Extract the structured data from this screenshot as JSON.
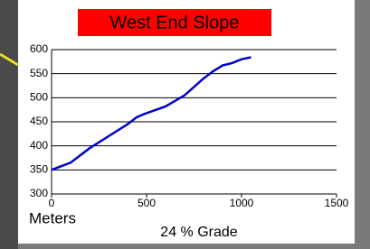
{
  "chart_data": {
    "type": "line",
    "title": "West End Slope",
    "title_background": "#ff0000",
    "x": [
      0,
      100,
      200,
      300,
      400,
      450,
      500,
      600,
      700,
      800,
      850,
      900,
      950,
      1000,
      1050
    ],
    "values": [
      350,
      365,
      395,
      420,
      445,
      460,
      468,
      482,
      505,
      540,
      555,
      567,
      572,
      580,
      584
    ],
    "color": "#0000cc",
    "xlim": [
      0,
      1500
    ],
    "xticks": [
      0,
      500,
      1000,
      1500
    ],
    "ylim": [
      300,
      600
    ],
    "yticks": [
      300,
      350,
      400,
      450,
      500,
      550,
      600
    ],
    "grid": true,
    "xlabel": "Meters",
    "annotation": "24 % Grade"
  }
}
